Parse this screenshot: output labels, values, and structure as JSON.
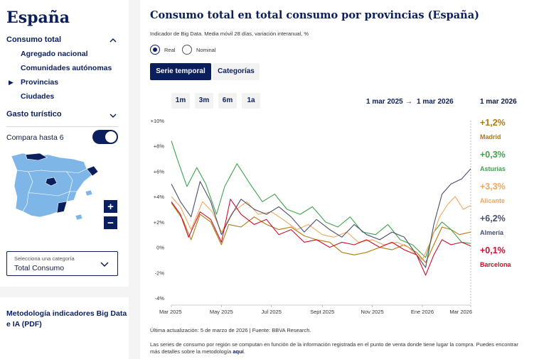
{
  "sidebar": {
    "title": "España",
    "nav": {
      "consumo_total": "Consumo total",
      "items": [
        "Agregado nacional",
        "Comunidades autónomas",
        "Provincias",
        "Ciudades"
      ],
      "selected_index": 2,
      "gasto_turistico": "Gasto turístico"
    },
    "compare_label": "Compara hasta 6",
    "zoom_in": "+",
    "zoom_out": "−",
    "category_select": {
      "label": "Selecciona una categoría",
      "value": "Total Consumo"
    },
    "methodology_link": "Metodología indicadores Big Data e IA (PDF)"
  },
  "main": {
    "title": "Consumo total en total consumo por provincias (España)",
    "subtitle": "Indicador de Big Data. Media móvil 28 días, variación interanual, %",
    "radio": {
      "real": "Real",
      "nominal": "Nominal",
      "selected": "real"
    },
    "tabs": {
      "serie": "Serie temporal",
      "categorias": "Categorías"
    },
    "ranges": [
      "1m",
      "3m",
      "6m",
      "1a"
    ],
    "date_from": "1 mar 2025",
    "arrow": "→",
    "date_to": "1 mar 2026",
    "legend_date": "1 mar 2026",
    "footer_update": "Última actualización: 5 de marzo de 2026 |  Fuente: BBVA Research.",
    "footer_note": "Las series de consumo por región se computan en función de la información registrada en el punto de venta donde tiene lugar la compra. Puedes encontrar más detalles sobre la metodología ",
    "footer_link": "aquí",
    "footer_end": "."
  },
  "colors": {
    "navy": "#0a1f5c",
    "madrid": "#b07a10",
    "asturias": "#3fa34d",
    "alicante": "#f2a65a",
    "almeria": "#4a4e6e",
    "barcelona": "#c8102e",
    "map_fill": "#7fb6e8",
    "map_selected": "#0a1f5c"
  },
  "chart_data": {
    "type": "line",
    "x_tick_labels": [
      "Mar 2025",
      "May 2025",
      "Jul 2025",
      "Sept 2025",
      "Nov 2025",
      "Ene 2026",
      "Mar 2026"
    ],
    "y_tick_labels": [
      "+10%",
      "+8%",
      "+6%",
      "+4%",
      "+2%",
      "0%",
      "-2%",
      "-4%"
    ],
    "ylim": [
      -4,
      10
    ],
    "grid": false,
    "legend_position": "right",
    "x_range": [
      "2025-03-01",
      "2026-03-01"
    ],
    "series": [
      {
        "name": "Madrid",
        "value_label": "+1,2%",
        "color": "#b07a10",
        "points": [
          [
            "2025-03-01",
            3.5
          ],
          [
            "2025-03-15",
            2.2
          ],
          [
            "2025-03-25",
            0.6
          ],
          [
            "2025-04-05",
            2.6
          ],
          [
            "2025-04-18",
            2.0
          ],
          [
            "2025-05-01",
            0.2
          ],
          [
            "2025-05-10",
            1.8
          ],
          [
            "2025-05-25",
            1.6
          ],
          [
            "2025-06-10",
            2.4
          ],
          [
            "2025-06-25",
            1.8
          ],
          [
            "2025-07-10",
            1.4
          ],
          [
            "2025-07-25",
            1.6
          ],
          [
            "2025-08-10",
            0.9
          ],
          [
            "2025-08-25",
            0.6
          ],
          [
            "2025-09-10",
            0.4
          ],
          [
            "2025-09-25",
            -0.4
          ],
          [
            "2025-10-10",
            -0.6
          ],
          [
            "2025-10-25",
            -0.4
          ],
          [
            "2025-11-10",
            0.0
          ],
          [
            "2025-11-25",
            -0.2
          ],
          [
            "2025-12-10",
            0.2
          ],
          [
            "2025-12-25",
            -0.4
          ],
          [
            "2026-01-05",
            -1.2
          ],
          [
            "2026-01-15",
            0.2
          ],
          [
            "2026-01-25",
            1.6
          ],
          [
            "2026-02-05",
            1.4
          ],
          [
            "2026-02-15",
            1.0
          ],
          [
            "2026-03-01",
            1.2
          ]
        ]
      },
      {
        "name": "Asturias",
        "value_label": "+0,3%",
        "color": "#3fa34d",
        "points": [
          [
            "2025-03-01",
            8.4
          ],
          [
            "2025-03-08",
            7.0
          ],
          [
            "2025-03-20",
            4.8
          ],
          [
            "2025-04-01",
            6.3
          ],
          [
            "2025-04-12",
            5.0
          ],
          [
            "2025-04-25",
            2.6
          ],
          [
            "2025-05-05",
            4.8
          ],
          [
            "2025-05-20",
            6.6
          ],
          [
            "2025-06-05",
            5.0
          ],
          [
            "2025-06-20",
            3.6
          ],
          [
            "2025-07-05",
            4.2
          ],
          [
            "2025-07-20",
            3.0
          ],
          [
            "2025-08-05",
            2.6
          ],
          [
            "2025-08-20",
            3.2
          ],
          [
            "2025-09-05",
            2.0
          ],
          [
            "2025-09-20",
            1.6
          ],
          [
            "2025-10-05",
            2.4
          ],
          [
            "2025-10-20",
            1.2
          ],
          [
            "2025-11-05",
            1.0
          ],
          [
            "2025-11-20",
            1.8
          ],
          [
            "2025-12-05",
            0.6
          ],
          [
            "2025-12-20",
            0.2
          ],
          [
            "2026-01-05",
            -0.8
          ],
          [
            "2026-01-15",
            1.2
          ],
          [
            "2026-01-25",
            2.0
          ],
          [
            "2026-02-05",
            1.4
          ],
          [
            "2026-02-18",
            0.4
          ],
          [
            "2026-03-01",
            0.3
          ]
        ]
      },
      {
        "name": "Alicante",
        "value_label": "+3,3%",
        "color": "#f2a65a",
        "points": [
          [
            "2025-03-01",
            4.0
          ],
          [
            "2025-03-12",
            3.2
          ],
          [
            "2025-03-25",
            1.4
          ],
          [
            "2025-04-08",
            3.6
          ],
          [
            "2025-04-20",
            2.8
          ],
          [
            "2025-05-01",
            1.2
          ],
          [
            "2025-05-15",
            2.8
          ],
          [
            "2025-06-01",
            3.6
          ],
          [
            "2025-06-15",
            2.6
          ],
          [
            "2025-07-01",
            2.8
          ],
          [
            "2025-07-15",
            2.2
          ],
          [
            "2025-08-01",
            1.4
          ],
          [
            "2025-08-15",
            1.8
          ],
          [
            "2025-09-01",
            1.0
          ],
          [
            "2025-09-15",
            0.8
          ],
          [
            "2025-10-01",
            1.2
          ],
          [
            "2025-10-15",
            0.4
          ],
          [
            "2025-11-01",
            0.6
          ],
          [
            "2025-11-15",
            0.2
          ],
          [
            "2025-12-01",
            0.4
          ],
          [
            "2025-12-15",
            0.0
          ],
          [
            "2026-01-01",
            -1.0
          ],
          [
            "2026-01-12",
            0.6
          ],
          [
            "2026-01-22",
            2.4
          ],
          [
            "2026-02-01",
            3.4
          ],
          [
            "2026-02-10",
            4.0
          ],
          [
            "2026-02-20",
            3.0
          ],
          [
            "2026-03-01",
            3.3
          ]
        ]
      },
      {
        "name": "Almería",
        "value_label": "+6,2%",
        "color": "#4a4e6e",
        "points": [
          [
            "2025-03-01",
            5.0
          ],
          [
            "2025-03-12",
            3.6
          ],
          [
            "2025-03-25",
            2.4
          ],
          [
            "2025-04-05",
            5.2
          ],
          [
            "2025-04-18",
            3.6
          ],
          [
            "2025-05-01",
            1.0
          ],
          [
            "2025-05-12",
            2.4
          ],
          [
            "2025-05-25",
            3.8
          ],
          [
            "2025-06-10",
            3.0
          ],
          [
            "2025-06-25",
            2.6
          ],
          [
            "2025-07-10",
            3.2
          ],
          [
            "2025-07-25",
            2.4
          ],
          [
            "2025-08-10",
            1.2
          ],
          [
            "2025-08-25",
            2.2
          ],
          [
            "2025-09-10",
            1.4
          ],
          [
            "2025-09-25",
            0.8
          ],
          [
            "2025-10-10",
            1.8
          ],
          [
            "2025-10-25",
            1.0
          ],
          [
            "2025-11-10",
            0.6
          ],
          [
            "2025-11-25",
            1.2
          ],
          [
            "2025-12-10",
            0.8
          ],
          [
            "2025-12-25",
            -0.6
          ],
          [
            "2026-01-05",
            -1.6
          ],
          [
            "2026-01-15",
            1.8
          ],
          [
            "2026-01-25",
            4.2
          ],
          [
            "2026-02-05",
            5.0
          ],
          [
            "2026-02-18",
            5.4
          ],
          [
            "2026-03-01",
            6.2
          ]
        ]
      },
      {
        "name": "Barcelona",
        "value_label": "+0,1%",
        "color": "#c8102e",
        "points": [
          [
            "2025-03-01",
            3.6
          ],
          [
            "2025-03-12",
            2.6
          ],
          [
            "2025-03-22",
            0.8
          ],
          [
            "2025-04-05",
            2.8
          ],
          [
            "2025-04-18",
            2.2
          ],
          [
            "2025-05-01",
            0.4
          ],
          [
            "2025-05-12",
            3.8
          ],
          [
            "2025-05-25",
            2.6
          ],
          [
            "2025-06-10",
            1.8
          ],
          [
            "2025-06-25",
            2.2
          ],
          [
            "2025-07-10",
            1.0
          ],
          [
            "2025-07-25",
            1.4
          ],
          [
            "2025-08-10",
            0.4
          ],
          [
            "2025-08-25",
            0.6
          ],
          [
            "2025-09-10",
            0.0
          ],
          [
            "2025-09-25",
            0.4
          ],
          [
            "2025-10-10",
            0.2
          ],
          [
            "2025-10-25",
            0.6
          ],
          [
            "2025-11-10",
            0.0
          ],
          [
            "2025-11-25",
            0.4
          ],
          [
            "2025-12-10",
            -0.2
          ],
          [
            "2025-12-25",
            -0.6
          ],
          [
            "2026-01-05",
            -2.2
          ],
          [
            "2026-01-15",
            -0.6
          ],
          [
            "2026-01-25",
            0.6
          ],
          [
            "2026-02-05",
            0.2
          ],
          [
            "2026-02-18",
            0.4
          ],
          [
            "2026-03-01",
            0.1
          ]
        ]
      }
    ]
  }
}
